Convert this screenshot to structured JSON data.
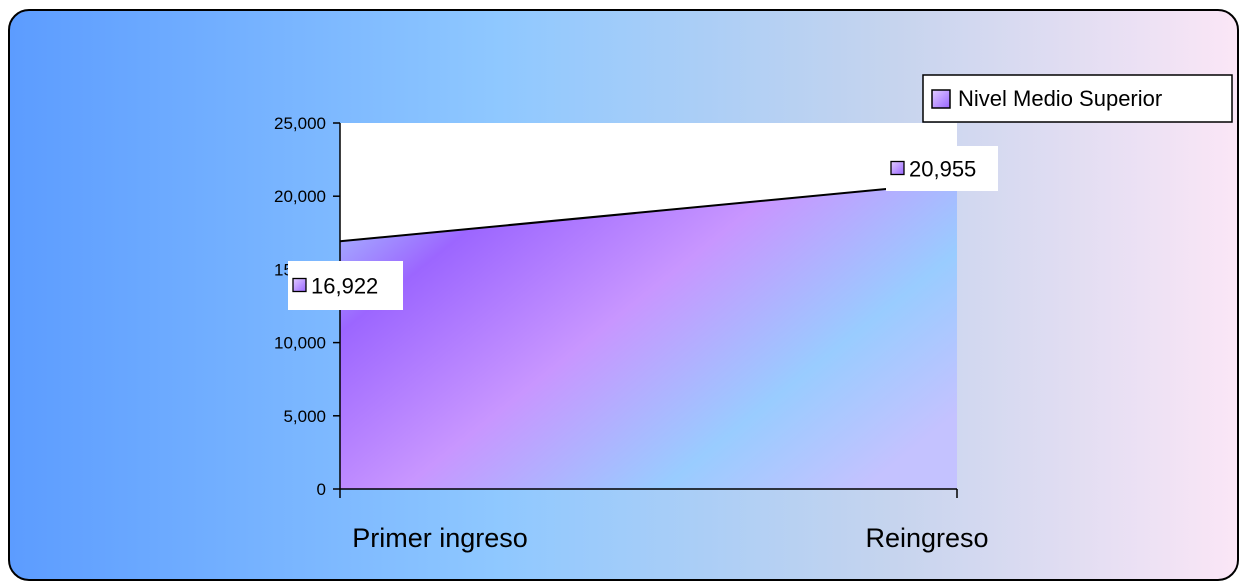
{
  "chart_data": {
    "type": "area",
    "categories": [
      "Primer ingreso",
      "Reingreso"
    ],
    "series": [
      {
        "name": "Nivel Medio Superior",
        "values": [
          16922,
          20955
        ]
      }
    ],
    "data_labels": [
      "16,922",
      "20,955"
    ],
    "y_ticks": [
      "0",
      "5,000",
      "10,000",
      "15,000",
      "20,000",
      "25,000"
    ],
    "ylim": [
      0,
      25000
    ],
    "grid": false,
    "legend_position": "top-right",
    "colors": {
      "background_left": "#5c9cff",
      "background_mid": "#8fc8ff",
      "background_right": "#fbe6f6",
      "area_purple": "#9c66ff",
      "area_light_purple": "#cc99ff",
      "area_light_blue": "#99ccff",
      "plot_area": "#ffffff",
      "border": "#000000"
    }
  }
}
